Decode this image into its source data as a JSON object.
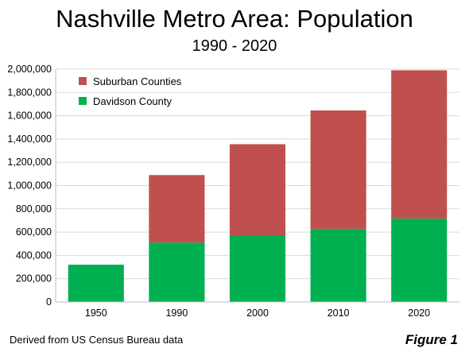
{
  "chart_data": {
    "type": "bar",
    "stacked": true,
    "title": "Nashville Metro Area: Population",
    "subtitle": "1990 - 2020",
    "categories": [
      "1950",
      "1990",
      "2000",
      "2010",
      "2020"
    ],
    "series": [
      {
        "name": "Davidson County",
        "color": "#00b050",
        "values": [
          320000,
          510000,
          570000,
          627000,
          716000
        ]
      },
      {
        "name": "Suburban Counties",
        "color": "#c0504d",
        "values": [
          0,
          580000,
          785000,
          1018000,
          1274000
        ]
      }
    ],
    "ylim": [
      0,
      2000000
    ],
    "yticks": [
      "0",
      "200,000",
      "400,000",
      "600,000",
      "800,000",
      "1,000,000",
      "1,200,000",
      "1,400,000",
      "1,600,000",
      "1,800,000",
      "2,000,000"
    ],
    "ytick_values": [
      0,
      200000,
      400000,
      600000,
      800000,
      1000000,
      1200000,
      1400000,
      1600000,
      1800000,
      2000000
    ],
    "legend": {
      "placement": "top-left",
      "entries": [
        "Suburban Counties",
        "Davidson County"
      ]
    },
    "grid": true
  },
  "footer": {
    "source": "Derived from US Census Bureau data",
    "figure": "Figure 1"
  }
}
